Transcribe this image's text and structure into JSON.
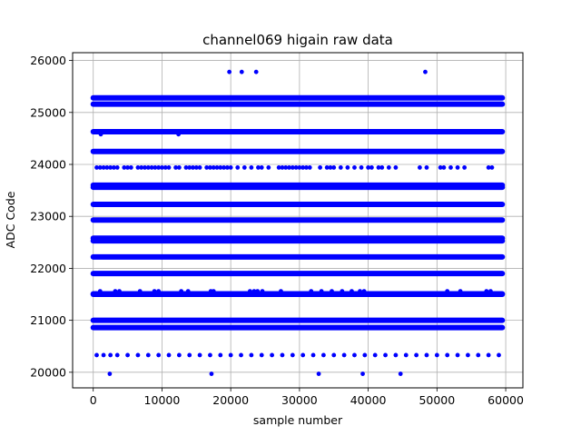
{
  "chart_data": {
    "type": "scatter",
    "title": "channel069 higain raw data",
    "xlabel": "sample number",
    "ylabel": "ADC Code",
    "xlim": [
      -3000,
      62500
    ],
    "ylim": [
      19700,
      26150
    ],
    "x_ticks": [
      0,
      10000,
      20000,
      30000,
      40000,
      50000,
      60000
    ],
    "y_ticks": [
      20000,
      21000,
      22000,
      23000,
      24000,
      25000,
      26000
    ],
    "grid": true,
    "marker_color": "#0000ff",
    "n_samples": 59500,
    "dense_levels": [
      25280,
      25160,
      24630,
      24250,
      23600,
      23560,
      23230,
      22930,
      22580,
      22530,
      22220,
      21900,
      21510,
      21500,
      21000,
      20860
    ],
    "sparse_levels": [
      {
        "y": 23940,
        "x": [
          500,
          1000,
          1500,
          2000,
          2500,
          3000,
          3500,
          4500,
          5000,
          5500,
          6500,
          7000,
          7500,
          8000,
          8500,
          9000,
          9500,
          10000,
          10500,
          11000,
          12000,
          12500,
          13500,
          14000,
          14500,
          15000,
          15500,
          16500,
          17000,
          17500,
          18000,
          18500,
          19000,
          19500,
          20000,
          21000,
          22000,
          23000,
          24000,
          24500,
          25500,
          27000,
          27500,
          28000,
          28500,
          29000,
          29500,
          30000,
          30500,
          31000,
          31500,
          33000,
          34000,
          34500,
          35000,
          36000,
          37000,
          38000,
          39000,
          40000,
          40500,
          41500,
          42000,
          43000,
          44000,
          47500,
          48500,
          50500,
          51000,
          52000,
          53000,
          54000,
          57500,
          58000
        ]
      },
      {
        "y": 21560,
        "x": [
          1000,
          3200,
          3800,
          6800,
          8900,
          9500,
          12800,
          13800,
          17100,
          17500,
          22800,
          23400,
          23900,
          24600,
          27300,
          31700,
          33200,
          34700,
          36200,
          37600,
          38800,
          39400,
          51500,
          53400,
          57200,
          57800
        ]
      },
      {
        "y": 20330,
        "x": [
          500,
          1500,
          2500,
          3500,
          5000,
          6500,
          8000,
          9500,
          11000,
          12500,
          14000,
          15500,
          17000,
          18500,
          20000,
          21500,
          23000,
          24500,
          26000,
          27500,
          29000,
          30500,
          32000,
          33500,
          35000,
          36500,
          38000,
          39500,
          41000,
          42500,
          44000,
          45500,
          47000,
          48500,
          50000,
          51500,
          53000,
          54500,
          56000,
          57500,
          59000
        ]
      },
      {
        "y": 24580,
        "x": [
          1100,
          12400
        ]
      }
    ],
    "outliers": [
      {
        "x": 19800,
        "y": 25780
      },
      {
        "x": 21600,
        "y": 25780
      },
      {
        "x": 23700,
        "y": 25780
      },
      {
        "x": 48300,
        "y": 25780
      },
      {
        "x": 2400,
        "y": 19970
      },
      {
        "x": 17200,
        "y": 19970
      },
      {
        "x": 32800,
        "y": 19970
      },
      {
        "x": 39200,
        "y": 19970
      },
      {
        "x": 44700,
        "y": 19970
      }
    ]
  }
}
